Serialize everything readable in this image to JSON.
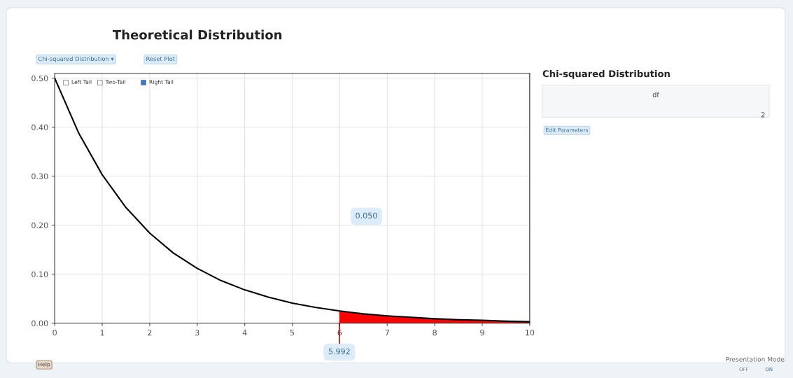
{
  "chart_data": {
    "type": "line",
    "title": "Theoretical Distribution",
    "series": [
      {
        "color": "#000000",
        "x": [
          0,
          0.5,
          1,
          1.5,
          2,
          2.5,
          3,
          3.5,
          4,
          4.5,
          5,
          5.5,
          6,
          6.5,
          7,
          7.5,
          8,
          8.5,
          9,
          9.5,
          10
        ],
        "values": [
          0.5,
          0.389,
          0.303,
          0.236,
          0.184,
          0.143,
          0.112,
          0.087,
          0.068,
          0.053,
          0.041,
          0.032,
          0.025,
          0.019,
          0.015,
          0.012,
          0.009,
          0.007,
          0.006,
          0.004,
          0.003
        ]
      },
      {
        "type": "area",
        "color": "#ff0000",
        "x": [
          5.992,
          6.5,
          7,
          7.5,
          8,
          8.5,
          9,
          9.5,
          10
        ],
        "values": [
          0.025,
          0.019,
          0.015,
          0.012,
          0.009,
          0.007,
          0.006,
          0.004,
          0.003
        ]
      }
    ],
    "xlim": [
      0,
      10
    ],
    "ylim": [
      0,
      0.51
    ],
    "xticks": [
      0,
      1,
      2,
      3,
      4,
      5,
      6,
      7,
      8,
      9,
      10
    ],
    "yticks": [
      {
        "value": 0,
        "label": "0.00"
      },
      {
        "value": 0.1,
        "label": "0.10"
      },
      {
        "value": 0.2,
        "label": "0.20"
      },
      {
        "value": 0.3,
        "label": "0.30"
      },
      {
        "value": 0.4,
        "label": "0.40"
      },
      {
        "value": 0.5,
        "label": "0.50"
      }
    ],
    "grid": true,
    "legend": false,
    "marker": "none",
    "line_style": "solid",
    "annotations": [
      "Chi-squared Distribution ▾",
      "Reset Plot",
      "Left Tail",
      "Two-Tail",
      "Right Tail",
      "Chi-squared Distribution",
      "df",
      "2",
      "Edit Parameters",
      "0.050",
      {
        "text": "5.992",
        "x": 5.992,
        "y": 0
      },
      "Help",
      "Presentation Mode",
      "OFF",
      "ON"
    ]
  }
}
